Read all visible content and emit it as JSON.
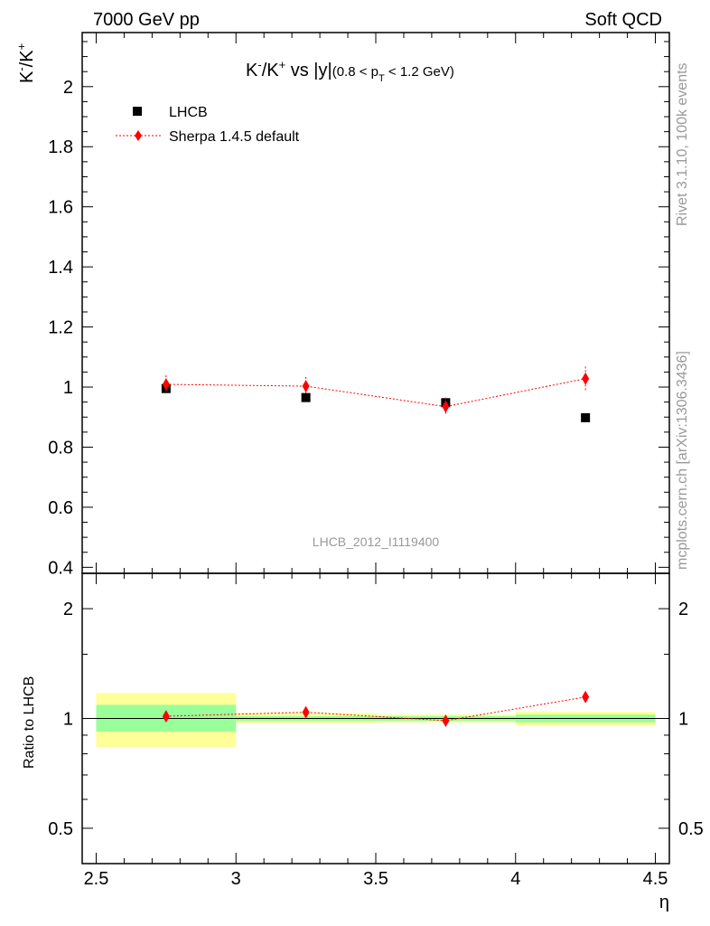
{
  "header": {
    "left": "7000 GeV pp",
    "right": "Soft QCD"
  },
  "side_text": {
    "rivet": "Rivet 3.1.10,  100k events",
    "mcplots": "mcplots.cern.ch [arXiv:1306.3436]"
  },
  "main_title": {
    "prefix": "K",
    "sup1": "-",
    "mid": "/K",
    "sup2": "+",
    "vs": " vs |y|",
    "cut_open": "(0.8 < p",
    "cut_sub": "T",
    "cut_close": " < 1.2 GeV)"
  },
  "ylabel": {
    "base1": "K",
    "sup1": "-",
    "base2": "/K",
    "sup2": "+"
  },
  "ratio_ylabel": "Ratio to LHCB",
  "xlabel": "η",
  "analysis_id": "LHCB_2012_I1119400",
  "legend": {
    "data_label": "LHCB",
    "mc_label": "Sherpa 1.4.5 default"
  },
  "colors": {
    "data": "#000000",
    "mc": "#ff0000",
    "band_inner": "#99ff99",
    "band_outer": "#ffff99",
    "frame": "#000000"
  },
  "chart_data": [
    {
      "type": "scatter",
      "name": "main",
      "xlim": [
        2.45,
        4.55
      ],
      "ylim": [
        0.38,
        2.18
      ],
      "xticks": [
        2.5,
        3,
        3.5,
        4,
        4.5
      ],
      "xtick_labels": [
        "2.5",
        "3",
        "3.5",
        "4",
        "4.5"
      ],
      "yticks": [
        0.4,
        0.6,
        0.8,
        1.0,
        1.2,
        1.4,
        1.6,
        1.8,
        2.0
      ],
      "ytick_labels": [
        "0.4",
        "0.6",
        "0.8",
        "1",
        "1.2",
        "1.4",
        "1.6",
        "1.8",
        "2"
      ],
      "series": [
        {
          "name": "LHCB",
          "x": [
            2.75,
            3.25,
            3.75,
            4.25
          ],
          "xerr": [
            0.25,
            0.25,
            0.25,
            0.25
          ],
          "y": [
            0.995,
            0.965,
            0.948,
            0.898
          ],
          "yerr": [
            0.0,
            0.0,
            0.0,
            0.0
          ]
        },
        {
          "name": "Sherpa 1.4.5 default",
          "x": [
            2.75,
            3.25,
            3.75,
            4.25
          ],
          "y": [
            1.009,
            1.003,
            0.935,
            1.028
          ],
          "yerr": [
            0.03,
            0.03,
            0.03,
            0.04
          ]
        }
      ]
    },
    {
      "type": "scatter",
      "name": "ratio",
      "scale": "log",
      "xlim": [
        2.45,
        4.55
      ],
      "ylim": [
        0.4,
        2.5
      ],
      "yticks": [
        0.5,
        1,
        2
      ],
      "ytick_labels": [
        "0.5",
        "1",
        "2"
      ],
      "ylabel": "Ratio to LHCB",
      "bands": {
        "x_lo": [
          2.5,
          3.0,
          3.5,
          4.0
        ],
        "x_hi": [
          3.0,
          3.5,
          4.0,
          4.5
        ],
        "inner_lo": [
          0.92,
          0.985,
          0.985,
          0.975
        ],
        "inner_hi": [
          1.09,
          1.015,
          1.015,
          1.025
        ],
        "outer_lo": [
          0.835,
          0.97,
          0.975,
          0.958
        ],
        "outer_hi": [
          1.175,
          1.035,
          1.025,
          1.045
        ]
      },
      "series": [
        {
          "name": "Sherpa 1.4.5 default / LHCB",
          "x": [
            2.75,
            3.25,
            3.75,
            4.25
          ],
          "y": [
            1.014,
            1.04,
            0.986,
            1.145
          ],
          "yerr": [
            0.025,
            0.025,
            0.025,
            0.035
          ]
        }
      ]
    }
  ]
}
